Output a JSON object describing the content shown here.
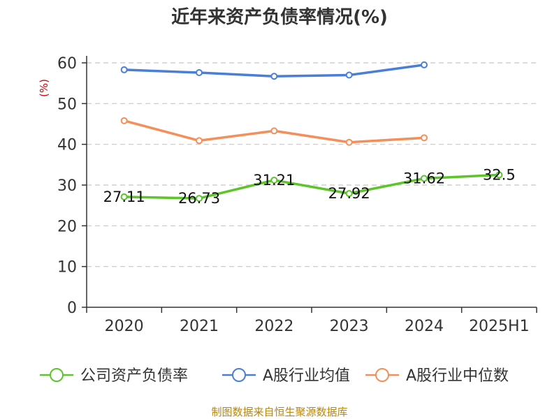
{
  "chart_data": {
    "type": "line",
    "title": "近年来资产负债率情况(%)",
    "ylabel": "(%)",
    "xlabel": "",
    "categories": [
      "2020",
      "2021",
      "2022",
      "2023",
      "2024",
      "2025H1"
    ],
    "ylim": [
      0,
      60
    ],
    "yticks": [
      0,
      10,
      20,
      30,
      40,
      50,
      60
    ],
    "grid": true,
    "legend_position": "bottom",
    "series": [
      {
        "name": "公司资产负债率",
        "color": "#5cc52a",
        "values": [
          27.11,
          26.73,
          31.21,
          27.92,
          31.62,
          32.5
        ],
        "labels": [
          "27.11",
          "26.73",
          "31.21",
          "27.92",
          "31.62",
          "32.5"
        ]
      },
      {
        "name": "A股行业均值",
        "color": "#4a7fd8",
        "values": [
          58.3,
          57.6,
          56.7,
          57.0,
          59.5,
          null
        ]
      },
      {
        "name": "A股行业中位数",
        "color": "#f58f5a",
        "values": [
          45.8,
          40.9,
          43.3,
          40.5,
          41.6,
          null
        ]
      }
    ]
  },
  "source": "制图数据来自恒生聚源数据库"
}
